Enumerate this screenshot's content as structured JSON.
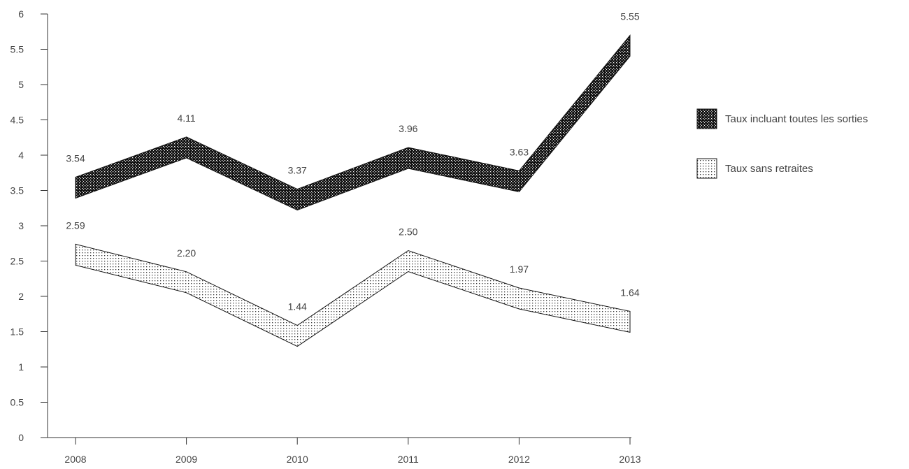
{
  "chart_data": {
    "type": "area",
    "categories": [
      "2008",
      "2009",
      "2010",
      "2011",
      "2012",
      "2013"
    ],
    "ylim": [
      0,
      6
    ],
    "yticks": [
      "0",
      "0.5",
      "1",
      "1.5",
      "2",
      "2.5",
      "3",
      "3.5",
      "4",
      "4.5",
      "5",
      "5.5",
      "6"
    ],
    "grid": false,
    "legend_position": "right",
    "series": [
      {
        "name": "Taux incluant toutes les sorties",
        "values": [
          3.54,
          4.11,
          3.37,
          3.96,
          3.63,
          5.55
        ],
        "labels": [
          "3.54",
          "4.11",
          "3.37",
          "3.96",
          "3.63",
          "5.55"
        ],
        "fill": "dense-dark-pattern"
      },
      {
        "name": "Taux sans retraites",
        "values": [
          2.59,
          2.2,
          1.44,
          2.5,
          1.97,
          1.64
        ],
        "labels": [
          "2.59",
          "2.20",
          "1.44",
          "2.50",
          "1.97",
          "1.64"
        ],
        "fill": "light-dot-pattern"
      }
    ],
    "axis_color": "#333333",
    "text_color": "#444444"
  }
}
